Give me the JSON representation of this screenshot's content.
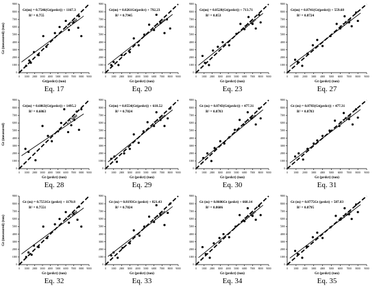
{
  "chart_data": [
    {
      "type": "scatter",
      "caption": "Eq. 17",
      "equation": "Gt(m) = 0.7546(Gt(prdct)) + 1167.3",
      "r2": "R² = 0.755",
      "line_label": "1:1 line",
      "xlabel": "Gt(prdct) (ton)",
      "ylabel": "Gt (measured) (ton)",
      "xticks": [
        "0",
        "1000",
        "2000",
        "3000",
        "4000",
        "5000",
        "6000",
        "7000",
        "8000",
        "9000"
      ],
      "yticks": [
        "0",
        "1000",
        "2000",
        "3000",
        "4000",
        "5000",
        "6000",
        "7000",
        "8000",
        "9000"
      ],
      "xlim": [
        0,
        9000
      ],
      "ylim": [
        0,
        9000
      ],
      "x": [
        900,
        1300,
        1500,
        1900,
        2500,
        3100,
        3500,
        4600,
        5200,
        6000,
        6400,
        7000,
        7600,
        7700,
        8000
      ],
      "y": [
        900,
        1600,
        1300,
        2700,
        2300,
        4800,
        3400,
        5200,
        6000,
        6800,
        5600,
        6600,
        5900,
        7400,
        4800
      ],
      "fit": {
        "slope": 0.7546,
        "intercept": 1167.3
      }
    },
    {
      "type": "scatter",
      "caption": "Eq. 20",
      "equation": "Gt(m) = 0.8261Gt(prdct) + 792.23",
      "r2": "R² = 0.7945",
      "line_label": "1:1 line",
      "xlabel": "Gt (prdct) (ton)",
      "ylabel": "",
      "xticks": [
        "0",
        "1000",
        "2000",
        "3000",
        "4000",
        "5000",
        "6000",
        "7000",
        "8000",
        "9000"
      ],
      "yticks": [
        "0",
        "1000",
        "2000",
        "3000",
        "4000",
        "5000",
        "6000",
        "7000",
        "8000",
        "9000"
      ],
      "xlim": [
        0,
        9000
      ],
      "ylim": [
        0,
        9000
      ],
      "x": [
        700,
        1000,
        1600,
        2000,
        3000,
        3500,
        4100,
        4800,
        5400,
        6000,
        6300,
        6800,
        7300,
        7600,
        8000
      ],
      "y": [
        1000,
        1400,
        1000,
        2300,
        2700,
        4500,
        3600,
        5000,
        6300,
        5600,
        7600,
        6500,
        5200,
        7000,
        5800
      ],
      "fit": {
        "slope": 0.8261,
        "intercept": 792.23
      }
    },
    {
      "type": "scatter",
      "caption": "Eq. 23",
      "equation": "Gt(m) = 0.8528(Gt(prdct)) + 713.71",
      "r2": "R² = 0.853",
      "line_label": "1:1 line",
      "xlabel": "Gt (prdct) (ton)",
      "ylabel": "",
      "xticks": [
        "0",
        "1000",
        "2000",
        "3000",
        "4000",
        "5000",
        "6000",
        "7000",
        "8000",
        "9000"
      ],
      "yticks": [
        "0",
        "1000",
        "2000",
        "3000",
        "4000",
        "5000",
        "6000",
        "7000",
        "8000",
        "9000"
      ],
      "xlim": [
        0,
        9000
      ],
      "ylim": [
        0,
        9000
      ],
      "x": [
        800,
        1100,
        1600,
        2100,
        2700,
        3300,
        4100,
        5000,
        5500,
        6000,
        6500,
        7000,
        7400,
        7800,
        8000
      ],
      "y": [
        2200,
        1300,
        1000,
        2900,
        3400,
        4000,
        3600,
        5100,
        6400,
        5700,
        7300,
        6400,
        5800,
        7600,
        6600
      ],
      "fit": {
        "slope": 0.8528,
        "intercept": 713.71
      }
    },
    {
      "type": "scatter",
      "caption": "Eq. 27",
      "equation": "Gt(m) = 0.8741(Gt(prdct)) + 559.68",
      "r2": "R² = 0.8724",
      "line_label": "1:1 line",
      "xlabel": "Gt (prdct) (ton)",
      "ylabel": "",
      "xticks": [
        "0",
        "1000",
        "2000",
        "3000",
        "4000",
        "5000",
        "6000",
        "7000",
        "8000",
        "9000"
      ],
      "yticks": [
        "0",
        "1000",
        "2000",
        "3000",
        "4000",
        "5000",
        "6000",
        "7000",
        "8000",
        "9000"
      ],
      "xlim": [
        0,
        9000
      ],
      "ylim": [
        0,
        9000
      ],
      "x": [
        900,
        1200,
        1700,
        2300,
        2900,
        3400,
        4000,
        4900,
        5600,
        6000,
        6500,
        7000,
        7300,
        7800,
        8000
      ],
      "y": [
        1700,
        1400,
        900,
        2500,
        3600,
        4300,
        3500,
        4800,
        6400,
        5800,
        7400,
        6600,
        6100,
        7900,
        6800
      ],
      "fit": {
        "slope": 0.8741,
        "intercept": 559.68
      }
    },
    {
      "type": "scatter",
      "caption": "Eq. 28",
      "equation": "Gt(m) = 0.6863(Gt(prdct)) + 1495.2",
      "r2": "R² = 0.6863",
      "line_label": "1:1 line",
      "xlabel": "Gt (prdct) (ton)",
      "ylabel": "Gt (measured)",
      "xticks": [
        "0",
        "1000",
        "2000",
        "3000",
        "4000",
        "5000",
        "6000",
        "7000",
        "8000",
        "9000"
      ],
      "yticks": [
        "0",
        "1000",
        "2000",
        "3000",
        "4000",
        "5000",
        "6000",
        "7000",
        "8000",
        "9000"
      ],
      "xlim": [
        0,
        9000
      ],
      "ylim": [
        0,
        9000
      ],
      "x": [
        800,
        1200,
        2100,
        3000,
        3700,
        4200,
        5000,
        5400,
        5800,
        6300,
        6700,
        7100,
        7400,
        7700,
        8000
      ],
      "y": [
        2600,
        2200,
        1100,
        5600,
        4300,
        3600,
        4900,
        6000,
        7800,
        4800,
        5700,
        6400,
        7500,
        5100,
        7800
      ],
      "fit": {
        "slope": 0.6863,
        "intercept": 1495.2
      }
    },
    {
      "type": "scatter",
      "caption": "Eq. 29",
      "equation": "Gt(m) = 0.8554(Gt(prdct)) + 618.52",
      "r2": "R² = 0.7824",
      "line_label": "1:1 line",
      "xlabel": "Gt (prdct) (ton)",
      "ylabel": "",
      "xticks": [
        "0",
        "1000",
        "2000",
        "3000",
        "4000",
        "5000",
        "6000",
        "7000",
        "8000",
        "9000"
      ],
      "yticks": [
        "0",
        "1000",
        "2000",
        "3000",
        "4000",
        "5000",
        "6000",
        "7000",
        "8000",
        "9000"
      ],
      "xlim": [
        0,
        9000
      ],
      "ylim": [
        0,
        9000
      ],
      "x": [
        700,
        1100,
        1400,
        2300,
        3000,
        3500,
        4100,
        4700,
        5200,
        6000,
        6300,
        6800,
        7300,
        7700,
        8000
      ],
      "y": [
        1300,
        1600,
        900,
        2000,
        2600,
        4500,
        3400,
        4900,
        6100,
        5600,
        7400,
        6400,
        5600,
        6600,
        7900
      ],
      "fit": {
        "slope": 0.8554,
        "intercept": 618.52
      }
    },
    {
      "type": "scatter",
      "caption": "Eq. 30",
      "equation": "Gt (m) = 0.8743(Gt(prdct)) + 477.31",
      "r2": "R² = 0.8783",
      "line_label": "1:1 line",
      "xlabel": "Gt (prdct) (ton)",
      "ylabel": "",
      "xticks": [
        "0",
        "1000",
        "2000",
        "3000",
        "4000",
        "5000",
        "6000",
        "7000",
        "8000",
        "9000"
      ],
      "yticks": [
        "0",
        "1000",
        "2000",
        "3000",
        "4000",
        "5000",
        "6000",
        "7000",
        "8000",
        "9000"
      ],
      "xlim": [
        0,
        9000
      ],
      "ylim": [
        0,
        9000
      ],
      "x": [
        900,
        1400,
        1900,
        2300,
        3000,
        3500,
        4100,
        4800,
        5400,
        5900,
        6400,
        6900,
        7400,
        7800,
        8000
      ],
      "y": [
        1400,
        2000,
        1000,
        2700,
        3600,
        3300,
        4100,
        5100,
        6400,
        5800,
        7400,
        6600,
        5800,
        7900,
        6600
      ],
      "fit": {
        "slope": 0.8743,
        "intercept": 477.31
      }
    },
    {
      "type": "scatter",
      "caption": "Eq. 31",
      "equation": "Gt (m) = 0.8783(Gt(prdct)) + 477.31",
      "r2": "R² = 0.8783",
      "line_label": "1:1 line",
      "xlabel": "Gt (prdct) (ton)",
      "ylabel": "",
      "xticks": [
        "0",
        "1000",
        "2000",
        "3000",
        "4000",
        "5000",
        "6000",
        "7000",
        "8000",
        "9000"
      ],
      "yticks": [
        "0",
        "1000",
        "2000",
        "3000",
        "4000",
        "5000",
        "6000",
        "7000",
        "8000",
        "9000"
      ],
      "xlim": [
        0,
        9000
      ],
      "ylim": [
        0,
        9000
      ],
      "x": [
        900,
        1300,
        1800,
        2300,
        3000,
        3400,
        4000,
        4800,
        5400,
        5900,
        6400,
        7000,
        7400,
        7800,
        8000
      ],
      "y": [
        1600,
        2000,
        1200,
        2600,
        3300,
        3700,
        4300,
        5000,
        6300,
        5600,
        7300,
        6500,
        5800,
        7800,
        6700
      ],
      "fit": {
        "slope": 0.8783,
        "intercept": 477.31
      }
    },
    {
      "type": "scatter",
      "caption": "Eq. 32",
      "equation": "Gt (m) = 0.7551Gt (prdct) + 1170.8",
      "r2": "R² = 0.7551",
      "line_label": "1:1 line",
      "xlabel": "Gt (prdct) (ton)",
      "ylabel": "Gt (measured) (ton)",
      "xticks": [
        "0",
        "1000",
        "2000",
        "3000",
        "4000",
        "5000",
        "6000",
        "7000",
        "8000",
        "9000"
      ],
      "yticks": [
        "0",
        "1000",
        "2000",
        "3000",
        "4000",
        "5000",
        "6000",
        "7000",
        "8000",
        "9000"
      ],
      "xlim": [
        0,
        9000
      ],
      "ylim": [
        0,
        9000
      ],
      "x": [
        900,
        1200,
        1600,
        1900,
        2500,
        3100,
        3600,
        4600,
        5200,
        6000,
        6400,
        7000,
        7500,
        7700,
        8000
      ],
      "y": [
        1000,
        1600,
        1300,
        2500,
        2300,
        5000,
        3500,
        5300,
        6000,
        6900,
        5500,
        6700,
        5900,
        7600,
        5000
      ],
      "fit": {
        "slope": 0.7551,
        "intercept": 1170.8
      }
    },
    {
      "type": "scatter",
      "caption": "Eq. 33",
      "equation": "Gt (m) = 0.8193Gt (prdct) + 821.43",
      "r2": "R² = 0.7824",
      "line_label": "1:1 line",
      "xlabel": "Gt (prdct) (ton)",
      "ylabel": "",
      "xticks": [
        "0",
        "1000",
        "2000",
        "3000",
        "4000",
        "5000",
        "6000",
        "7000",
        "8000",
        "9000"
      ],
      "yticks": [
        "0",
        "1000",
        "2000",
        "3000",
        "4000",
        "5000",
        "6000",
        "7000",
        "8000",
        "9000"
      ],
      "xlim": [
        0,
        9000
      ],
      "ylim": [
        0,
        9000
      ],
      "x": [
        700,
        1000,
        1500,
        2100,
        3000,
        3500,
        4200,
        4800,
        5400,
        6000,
        6300,
        6800,
        7300,
        7700,
        8000
      ],
      "y": [
        1200,
        1600,
        900,
        2200,
        2800,
        4500,
        3800,
        5000,
        6300,
        5600,
        7800,
        6500,
        5200,
        6800,
        8000
      ],
      "fit": {
        "slope": 0.8193,
        "intercept": 821.43
      }
    },
    {
      "type": "scatter",
      "caption": "Eq. 34",
      "equation": "Gt (m) = 0.8606Gt (prdct) + 660.14",
      "r2": "R² = 0.8606",
      "line_label": "1:1 line",
      "xlabel": "Gt (prdct) (ton)",
      "ylabel": "",
      "xticks": [
        "0",
        "1000",
        "2000",
        "3000",
        "4000",
        "5000",
        "6000",
        "7000",
        "8000",
        "9000"
      ],
      "yticks": [
        "0",
        "1000",
        "2000",
        "3000",
        "4000",
        "5000",
        "6000",
        "7000",
        "8000",
        "9000"
      ],
      "xlim": [
        0,
        9000
      ],
      "ylim": [
        0,
        9000
      ],
      "x": [
        800,
        1200,
        1700,
        2200,
        2900,
        3400,
        4100,
        4900,
        5400,
        6000,
        6400,
        7000,
        7400,
        7800,
        8000
      ],
      "y": [
        2300,
        1400,
        900,
        2800,
        3500,
        4000,
        3600,
        5000,
        6500,
        5700,
        7400,
        6400,
        5900,
        7700,
        6500
      ],
      "fit": {
        "slope": 0.8606,
        "intercept": 660.14
      }
    },
    {
      "type": "scatter",
      "caption": "Eq. 35",
      "equation": "Gt (m) = 0.8775Gt (prdct) + 587.83",
      "r2": "R² = 0.8795",
      "line_label": "1:1 line",
      "xlabel": "Gt (prdct) (ton)",
      "ylabel": "",
      "xticks": [
        "0",
        "1000",
        "2000",
        "3000",
        "4000",
        "5000",
        "6000",
        "7000",
        "8000",
        "9000"
      ],
      "yticks": [
        "0",
        "1000",
        "2000",
        "3000",
        "4000",
        "5000",
        "6000",
        "7000",
        "8000",
        "9000"
      ],
      "xlim": [
        0,
        9000
      ],
      "ylim": [
        0,
        9000
      ],
      "x": [
        900,
        1200,
        1700,
        2200,
        2900,
        3400,
        4000,
        4900,
        5500,
        6000,
        6500,
        7000,
        7300,
        7800,
        8000
      ],
      "y": [
        1800,
        1400,
        900,
        2400,
        3600,
        4200,
        3500,
        4900,
        6400,
        5900,
        7400,
        6600,
        6000,
        7900,
        6900
      ],
      "fit": {
        "slope": 0.8775,
        "intercept": 587.83
      }
    }
  ]
}
